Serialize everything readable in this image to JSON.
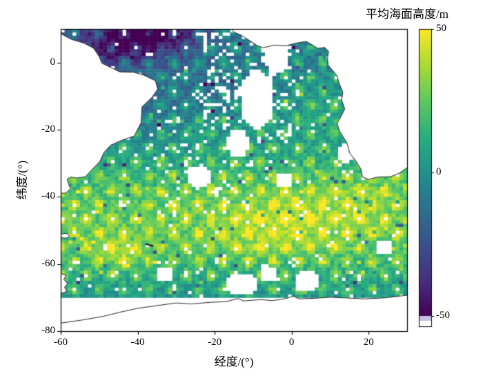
{
  "chart_data": {
    "type": "heatmap",
    "title": "平均海面高度/m",
    "xlabel": "经度/(°)",
    "ylabel": "纬度/(°)",
    "xlim": [
      -60,
      30
    ],
    "ylim": [
      -80,
      10
    ],
    "xticks": [
      -60,
      -40,
      -20,
      0,
      20
    ],
    "yticks": [
      0,
      -20,
      -40,
      -60,
      -80
    ],
    "grid": false,
    "grid_resolution_deg": 1,
    "value_range": [
      -50,
      50
    ],
    "colorbar": {
      "label": "平均海面高度/m",
      "ticks": [
        50,
        0,
        -50
      ],
      "min": -50,
      "max": 50,
      "under_strips": [
        [
          "#c9bfe4",
          7
        ],
        [
          "#ffffff",
          8
        ]
      ]
    },
    "colormap": "viridis",
    "colormap_stops": [
      [
        0,
        "#440154"
      ],
      [
        0.13,
        "#46327e"
      ],
      [
        0.25,
        "#3b528b"
      ],
      [
        0.38,
        "#2c728e"
      ],
      [
        0.5,
        "#21918c"
      ],
      [
        0.62,
        "#28ae80"
      ],
      [
        0.75,
        "#5ec962"
      ],
      [
        0.88,
        "#addc30"
      ],
      [
        1,
        "#fde725"
      ]
    ],
    "data_extent": {
      "lat_min": -70,
      "lat_max": 10
    },
    "base_profile": {
      "lats": [
        10,
        0,
        -10,
        -20,
        -30,
        -35,
        -40,
        -50,
        -58,
        -65,
        -70
      ],
      "values": [
        -4,
        -2,
        3,
        8,
        16,
        23,
        28,
        30,
        24,
        13,
        7
      ]
    },
    "blobs": [
      {
        "lon": -38,
        "lat": 8,
        "sx": 10,
        "sy": 5,
        "amp": -50
      },
      {
        "lon": -52,
        "lat": 1,
        "sx": 6,
        "sy": 5,
        "amp": -24
      },
      {
        "lon": -40,
        "lat": -14,
        "sx": 9,
        "sy": 9,
        "amp": -13
      },
      {
        "lon": -20,
        "lat": -8,
        "sx": 7,
        "sy": 5,
        "amp": -10
      },
      {
        "lon": 0,
        "lat": -47,
        "sx": 11,
        "sy": 7,
        "amp": 14
      },
      {
        "lon": -45,
        "lat": -57,
        "sx": 5,
        "sy": 3.5,
        "amp": 16
      },
      {
        "lon": 20,
        "lat": -41,
        "sx": 7,
        "sy": 6,
        "amp": 8
      },
      {
        "lon": 8,
        "lat": -12,
        "sx": 5,
        "sy": 6,
        "amp": 8
      },
      {
        "lon": -12,
        "lat": -52,
        "sx": 6,
        "sy": 5,
        "amp": 6
      }
    ],
    "tracks": {
      "f1": 0.155,
      "f2": 0.118,
      "amp": 9,
      "cross": 7
    },
    "noise_amplitude": 9,
    "gap_noise": 0.03,
    "lattice_gap_threshold": 0.92,
    "sparse_zones": [
      {
        "lon": [
          -24,
          2
        ],
        "lat": [
          -24,
          9
        ],
        "p": 0.2
      },
      {
        "lon": [
          -34,
          -10
        ],
        "lat": [
          -46,
          -24
        ],
        "p": 0.07
      },
      {
        "lon": [
          -60,
          -40
        ],
        "lat": [
          -24,
          -2
        ],
        "p": 0.08
      }
    ],
    "gaps": [
      {
        "lon": -9,
        "lat": -11,
        "rx": 4.5,
        "ry": 9
      },
      {
        "lon": -4,
        "lat": 2,
        "rx": 3.5,
        "ry": 5
      },
      {
        "lon": -14,
        "lat": -24,
        "rx": 3,
        "ry": 4.5
      },
      {
        "lon": -24,
        "lat": -34,
        "rx": 3,
        "ry": 3
      },
      {
        "lon": -49,
        "lat": -7,
        "rx": 2.5,
        "ry": 3
      },
      {
        "lon": -53,
        "lat": -15,
        "rx": 2.5,
        "ry": 5
      },
      {
        "lon": -55,
        "lat": -27,
        "rx": 2,
        "ry": 3
      },
      {
        "lon": -13,
        "lat": -66,
        "rx": 4,
        "ry": 3.5
      },
      {
        "lon": -6,
        "lat": -63,
        "rx": 2.5,
        "ry": 2.5
      },
      {
        "lon": 4,
        "lat": -65,
        "rx": 3,
        "ry": 3
      },
      {
        "lon": -33,
        "lat": -63,
        "rx": 2.5,
        "ry": 2.5
      },
      {
        "lon": 27,
        "lat": -27,
        "rx": 3,
        "ry": 5
      },
      {
        "lon": 14,
        "lat": -27,
        "rx": 2,
        "ry": 3
      },
      {
        "lon": 24,
        "lat": -55,
        "rx": 2.5,
        "ry": 2.5
      },
      {
        "lon": -2,
        "lat": -35,
        "rx": 2,
        "ry": 2.5
      }
    ],
    "land": {
      "coasts": [
        [
          [
            -60,
            8.6
          ],
          [
            -57.2,
            6.9
          ],
          [
            -54,
            5.8
          ],
          [
            -51.5,
            4.3
          ],
          [
            -50,
            1.8
          ],
          [
            -49.3,
            -0.2
          ],
          [
            -48,
            -0.9
          ],
          [
            -44.6,
            -2.8
          ],
          [
            -41,
            -2.9
          ],
          [
            -38.5,
            -3.7
          ],
          [
            -35.4,
            -5.4
          ],
          [
            -34.8,
            -7.9
          ],
          [
            -36.3,
            -10.4
          ],
          [
            -38.9,
            -13.2
          ],
          [
            -39,
            -15.6
          ],
          [
            -39.1,
            -17.9
          ],
          [
            -40.9,
            -21.9
          ],
          [
            -44,
            -23.1
          ],
          [
            -47,
            -24.6
          ],
          [
            -48.7,
            -26.7
          ],
          [
            -49.8,
            -29.4
          ],
          [
            -51.9,
            -31.9
          ],
          [
            -53.6,
            -34
          ],
          [
            -55.8,
            -34.4
          ],
          [
            -57.4,
            -34.1
          ],
          [
            -58.3,
            -34.7
          ],
          [
            -57.9,
            -36.4
          ],
          [
            -57.4,
            -37.6
          ],
          [
            -58.8,
            -38.9
          ],
          [
            -60,
            -38.9
          ]
        ],
        [
          [
            -15.7,
            10
          ],
          [
            -14.9,
            9
          ],
          [
            -13.2,
            8.2
          ],
          [
            -11.4,
            6.9
          ],
          [
            -9,
            5.1
          ],
          [
            -7.5,
            4.4
          ],
          [
            -4.5,
            5.2
          ],
          [
            -1.5,
            5
          ],
          [
            1.2,
            5.8
          ],
          [
            3.8,
            6.3
          ],
          [
            5.3,
            5.3
          ],
          [
            6.8,
            4.2
          ],
          [
            8.6,
            4.5
          ],
          [
            9.6,
            3.3
          ],
          [
            9.3,
            1.2
          ],
          [
            9.5,
            -0.8
          ],
          [
            11.8,
            -3.9
          ],
          [
            12.3,
            -6.1
          ],
          [
            13.3,
            -8.8
          ],
          [
            13,
            -11.2
          ],
          [
            13.8,
            -13.8
          ],
          [
            12.5,
            -16.8
          ],
          [
            11.8,
            -18.2
          ],
          [
            12.5,
            -20.5
          ],
          [
            14.4,
            -24
          ],
          [
            15.1,
            -27
          ],
          [
            16.5,
            -29
          ],
          [
            18,
            -31.7
          ],
          [
            18.4,
            -34.1
          ],
          [
            20,
            -34.8
          ],
          [
            22.4,
            -34.1
          ],
          [
            25.7,
            -34
          ],
          [
            27.9,
            -33
          ],
          [
            30,
            -31.3
          ]
        ],
        [
          [
            -60,
            -77.6
          ],
          [
            -54,
            -76.6
          ],
          [
            -49,
            -75.6
          ],
          [
            -44,
            -74.2
          ],
          [
            -40,
            -73.2
          ],
          [
            -35,
            -72.4
          ],
          [
            -30,
            -71.6
          ],
          [
            -26,
            -71.9
          ],
          [
            -21,
            -71.4
          ],
          [
            -17,
            -71.2
          ],
          [
            -14,
            -70.3
          ],
          [
            -12.5,
            -71
          ],
          [
            -8,
            -70.6
          ],
          [
            -5,
            -70.9
          ],
          [
            -2,
            -70.4
          ],
          [
            0.5,
            -69.6
          ],
          [
            2,
            -70.4
          ],
          [
            6,
            -70.2
          ],
          [
            10,
            -69.9
          ],
          [
            14,
            -70.1
          ],
          [
            19,
            -70.4
          ],
          [
            24,
            -70.1
          ],
          [
            27,
            -69.7
          ],
          [
            30,
            -69.3
          ]
        ],
        [
          [
            -60,
            -62.8
          ],
          [
            -58.6,
            -63.4
          ],
          [
            -59.2,
            -64.6
          ],
          [
            -58.2,
            -65.8
          ],
          [
            -59,
            -66.9
          ],
          [
            -58.4,
            -68.2
          ],
          [
            -60,
            -68.8
          ]
        ]
      ],
      "fill_extra": [
        [],
        [
          [
            30,
            10
          ]
        ],
        [
          [
            30,
            -80
          ],
          [
            -60,
            -80
          ]
        ],
        []
      ],
      "islands": {
        "falkland": {
          "lon": -58.9,
          "lat": -51.6,
          "rx": 1.1,
          "ry": 0.7
        },
        "south_georgia": {
          "from": [
            -38,
            -54
          ],
          "to": [
            -35.9,
            -54.7
          ]
        }
      }
    }
  }
}
